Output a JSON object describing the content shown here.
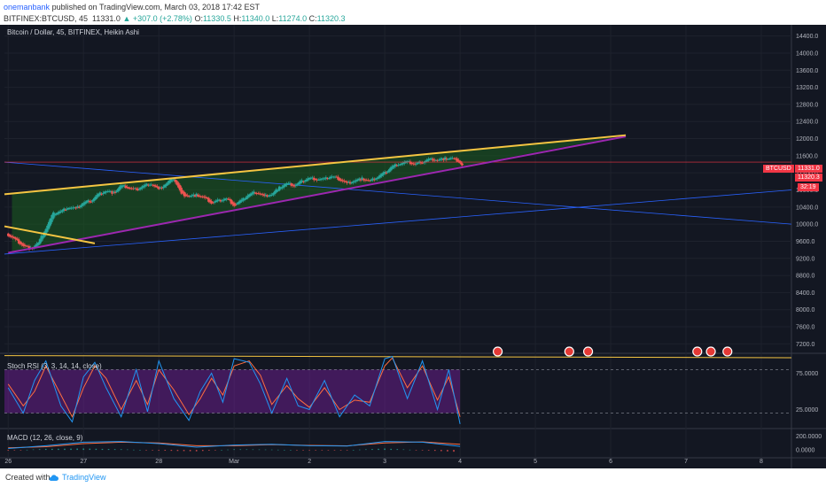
{
  "header": {
    "author": "onemanbank",
    "published": "published on TradingView.com, March 03, 2018 17:42 EST",
    "symbol": "BITFINEX:BTCUSD, 45",
    "last": "11331.0",
    "change": "+307.0 (+2.78%)",
    "open_label": "O:",
    "open": "11330.5",
    "high_label": "H:",
    "high": "11340.0",
    "low_label": "L:",
    "low": "11274.0",
    "close_label": "C:",
    "close": "11320.3"
  },
  "chart_title": "Bitcoin / Dollar, 45, BITFINEX, Heikin Ashi",
  "badges": {
    "symbol": "BTCUSD",
    "last_price": "11331.0",
    "close_price": "11320.3",
    "countdown": "32:19"
  },
  "stoch_label": "Stoch RSI (3, 3, 14, 14, close)",
  "macd_label": "MACD (12, 26, close, 9)",
  "footer": {
    "created": "Created with",
    "brand": "TradingView"
  },
  "colors": {
    "bg": "#131722",
    "up": "#26a69a",
    "down": "#ef5350",
    "trend": "#f5c542",
    "wedge": "#9c27b0",
    "stoch_k": "#2196f3",
    "stoch_d": "#ff6e40"
  },
  "chart_data": [
    {
      "type": "candlestick",
      "title": "Bitcoin / Dollar, 45, BITFINEX, Heikin Ashi",
      "x_ticks": [
        "26",
        "27",
        "28",
        "Mar",
        "2",
        "3",
        "4",
        "5",
        "6",
        "7",
        "8"
      ],
      "y_ticks": [
        7200,
        7600,
        8000,
        8400,
        8800,
        9200,
        9600,
        10000,
        10400,
        10800,
        11200,
        11600,
        12000,
        12400,
        12800,
        13200,
        13600,
        14000,
        14400
      ],
      "ylim": [
        7000,
        14600
      ],
      "xlim": [
        -0.05,
        10.4
      ],
      "close_path": [
        [
          0.0,
          9750
        ],
        [
          0.1,
          9630
        ],
        [
          0.2,
          9500
        ],
        [
          0.3,
          9420
        ],
        [
          0.4,
          9560
        ],
        [
          0.5,
          9900
        ],
        [
          0.6,
          10250
        ],
        [
          0.7,
          10300
        ],
        [
          0.8,
          10400
        ],
        [
          0.9,
          10360
        ],
        [
          1.0,
          10500
        ],
        [
          1.1,
          10550
        ],
        [
          1.2,
          10700
        ],
        [
          1.3,
          10780
        ],
        [
          1.4,
          10730
        ],
        [
          1.5,
          10900
        ],
        [
          1.6,
          10850
        ],
        [
          1.7,
          10800
        ],
        [
          1.8,
          10900
        ],
        [
          1.9,
          10950
        ],
        [
          2.0,
          10800
        ],
        [
          2.1,
          10950
        ],
        [
          2.2,
          11080
        ],
        [
          2.3,
          10700
        ],
        [
          2.4,
          10650
        ],
        [
          2.5,
          10680
        ],
        [
          2.6,
          10620
        ],
        [
          2.7,
          10500
        ],
        [
          2.8,
          10550
        ],
        [
          2.9,
          10600
        ],
        [
          3.0,
          10450
        ],
        [
          3.1,
          10550
        ],
        [
          3.2,
          10700
        ],
        [
          3.3,
          10750
        ],
        [
          3.4,
          10650
        ],
        [
          3.5,
          10700
        ],
        [
          3.6,
          10850
        ],
        [
          3.7,
          10950
        ],
        [
          3.8,
          10900
        ],
        [
          3.9,
          11000
        ],
        [
          4.0,
          11080
        ],
        [
          4.1,
          11050
        ],
        [
          4.2,
          11050
        ],
        [
          4.3,
          11120
        ],
        [
          4.4,
          11050
        ],
        [
          4.5,
          10950
        ],
        [
          4.6,
          11020
        ],
        [
          4.7,
          11060
        ],
        [
          4.8,
          11000
        ],
        [
          4.9,
          11100
        ],
        [
          5.0,
          11200
        ],
        [
          5.1,
          11350
        ],
        [
          5.2,
          11420
        ],
        [
          5.3,
          11450
        ],
        [
          5.4,
          11400
        ],
        [
          5.5,
          11460
        ],
        [
          5.6,
          11520
        ],
        [
          5.7,
          11500
        ],
        [
          5.8,
          11530
        ],
        [
          5.9,
          11540
        ],
        [
          6.0,
          11450
        ],
        [
          6.04,
          11331
        ]
      ],
      "lines": [
        {
          "name": "upper-trend",
          "x": [
            -0.05,
            8.2
          ],
          "y": [
            10700,
            12080
          ]
        },
        {
          "name": "lower-trend",
          "x": [
            0.0,
            8.2
          ],
          "y": [
            9330,
            12050
          ]
        },
        {
          "name": "short-downtrend",
          "x": [
            -0.05,
            1.15
          ],
          "y": [
            9950,
            9550
          ]
        },
        {
          "name": "horizontal-resistance",
          "x": [
            -0.05,
            10.4
          ],
          "y": [
            11450,
            11450
          ]
        }
      ],
      "last": 11331.0,
      "close": 11320.3
    },
    {
      "type": "line",
      "title": "Stoch RSI (3, 3, 14, 14, close)",
      "y_ticks": [
        25.0,
        75.0
      ],
      "ylim": [
        0,
        100
      ],
      "series": [
        {
          "name": "K",
          "x": [
            0.0,
            0.2,
            0.35,
            0.5,
            0.7,
            0.85,
            1.0,
            1.15,
            1.3,
            1.5,
            1.7,
            1.85,
            2.0,
            2.2,
            2.4,
            2.55,
            2.7,
            2.85,
            3.0,
            3.2,
            3.35,
            3.5,
            3.7,
            3.85,
            4.0,
            4.2,
            4.4,
            4.6,
            4.8,
            5.0,
            5.1,
            5.3,
            5.5,
            5.7,
            5.85,
            6.0
          ],
          "y": [
            55,
            20,
            65,
            92,
            30,
            8,
            70,
            90,
            55,
            15,
            80,
            22,
            92,
            40,
            10,
            50,
            75,
            35,
            95,
            90,
            60,
            20,
            68,
            30,
            25,
            65,
            15,
            45,
            30,
            95,
            98,
            40,
            92,
            25,
            80,
            5
          ]
        },
        {
          "name": "D",
          "x": [
            0.0,
            0.2,
            0.35,
            0.5,
            0.7,
            0.85,
            1.0,
            1.15,
            1.3,
            1.5,
            1.7,
            1.85,
            2.0,
            2.2,
            2.4,
            2.55,
            2.7,
            2.85,
            3.0,
            3.2,
            3.35,
            3.5,
            3.7,
            3.85,
            4.0,
            4.2,
            4.4,
            4.6,
            4.8,
            5.0,
            5.1,
            5.3,
            5.5,
            5.7,
            5.85,
            6.0
          ],
          "y": [
            60,
            30,
            50,
            85,
            45,
            15,
            55,
            85,
            68,
            25,
            65,
            32,
            80,
            52,
            18,
            40,
            68,
            45,
            85,
            92,
            72,
            32,
            58,
            40,
            28,
            55,
            25,
            38,
            35,
            85,
            96,
            55,
            85,
            38,
            70,
            15
          ]
        }
      ]
    },
    {
      "type": "line",
      "title": "MACD (12, 26, close, 9)",
      "y_ticks": [
        200.0,
        0.0
      ],
      "ylim": [
        -100,
        280
      ],
      "series": [
        {
          "name": "MACD",
          "x": [
            0.0,
            0.5,
            1.0,
            1.5,
            2.0,
            2.5,
            3.0,
            3.5,
            4.0,
            4.5,
            5.0,
            5.5,
            6.0
          ],
          "y": [
            20,
            60,
            110,
            120,
            90,
            40,
            70,
            80,
            60,
            55,
            120,
            110,
            50
          ]
        },
        {
          "name": "Signal",
          "x": [
            0.0,
            0.5,
            1.0,
            1.5,
            2.0,
            2.5,
            3.0,
            3.5,
            4.0,
            4.5,
            5.0,
            5.5,
            6.0
          ],
          "y": [
            30,
            45,
            90,
            110,
            100,
            60,
            60,
            75,
            65,
            58,
            100,
            115,
            80
          ]
        }
      ]
    }
  ]
}
